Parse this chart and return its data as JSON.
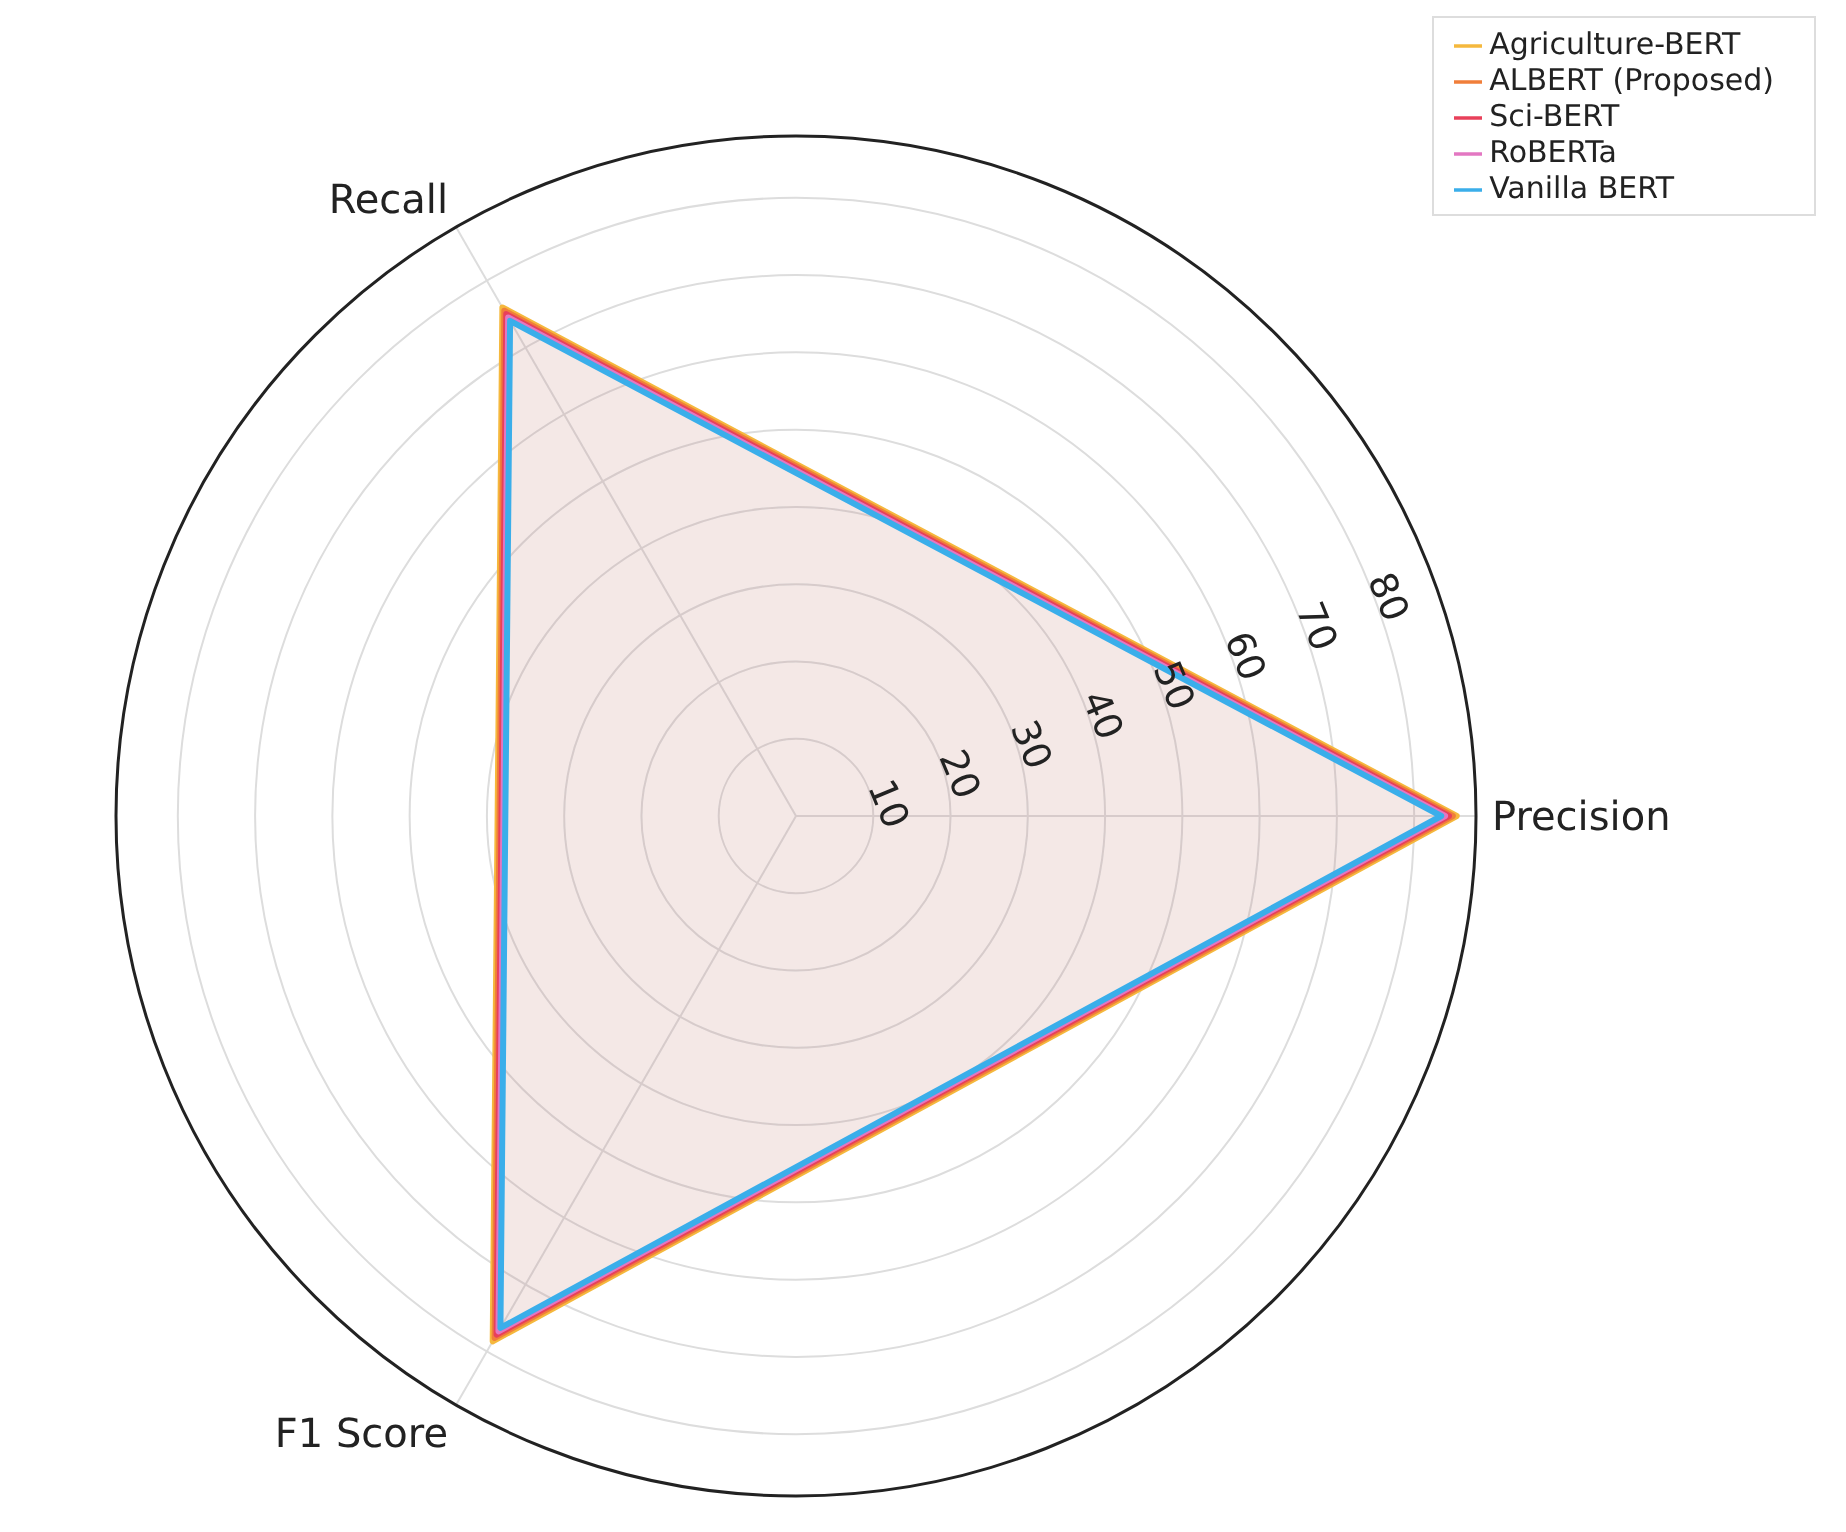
{
  "chart_data": {
    "type": "radar",
    "categories": [
      "Precision",
      "F1 Score",
      "Recall"
    ],
    "series": [
      {
        "name": "Agriculture-BERT",
        "color": "#f5b83d",
        "values": [
          85.5,
          78.5,
          76
        ]
      },
      {
        "name": "ALBERT (Proposed)",
        "color": "#f07e3a",
        "values": [
          85,
          78,
          75.5
        ]
      },
      {
        "name": "Sci-BERT",
        "color": "#e8405a",
        "values": [
          84.5,
          77.5,
          75
        ]
      },
      {
        "name": "RoBERTa",
        "color": "#e377c2",
        "values": [
          84,
          77,
          74.5
        ]
      },
      {
        "name": "Vanilla BERT",
        "color": "#3aaeea",
        "values": [
          83.5,
          76.5,
          74
        ]
      }
    ],
    "ylim": [
      0,
      88
    ],
    "yticks": [
      10,
      20,
      30,
      40,
      50,
      60,
      70,
      80
    ],
    "grid": true,
    "legend": "top right",
    "marker": "none"
  }
}
